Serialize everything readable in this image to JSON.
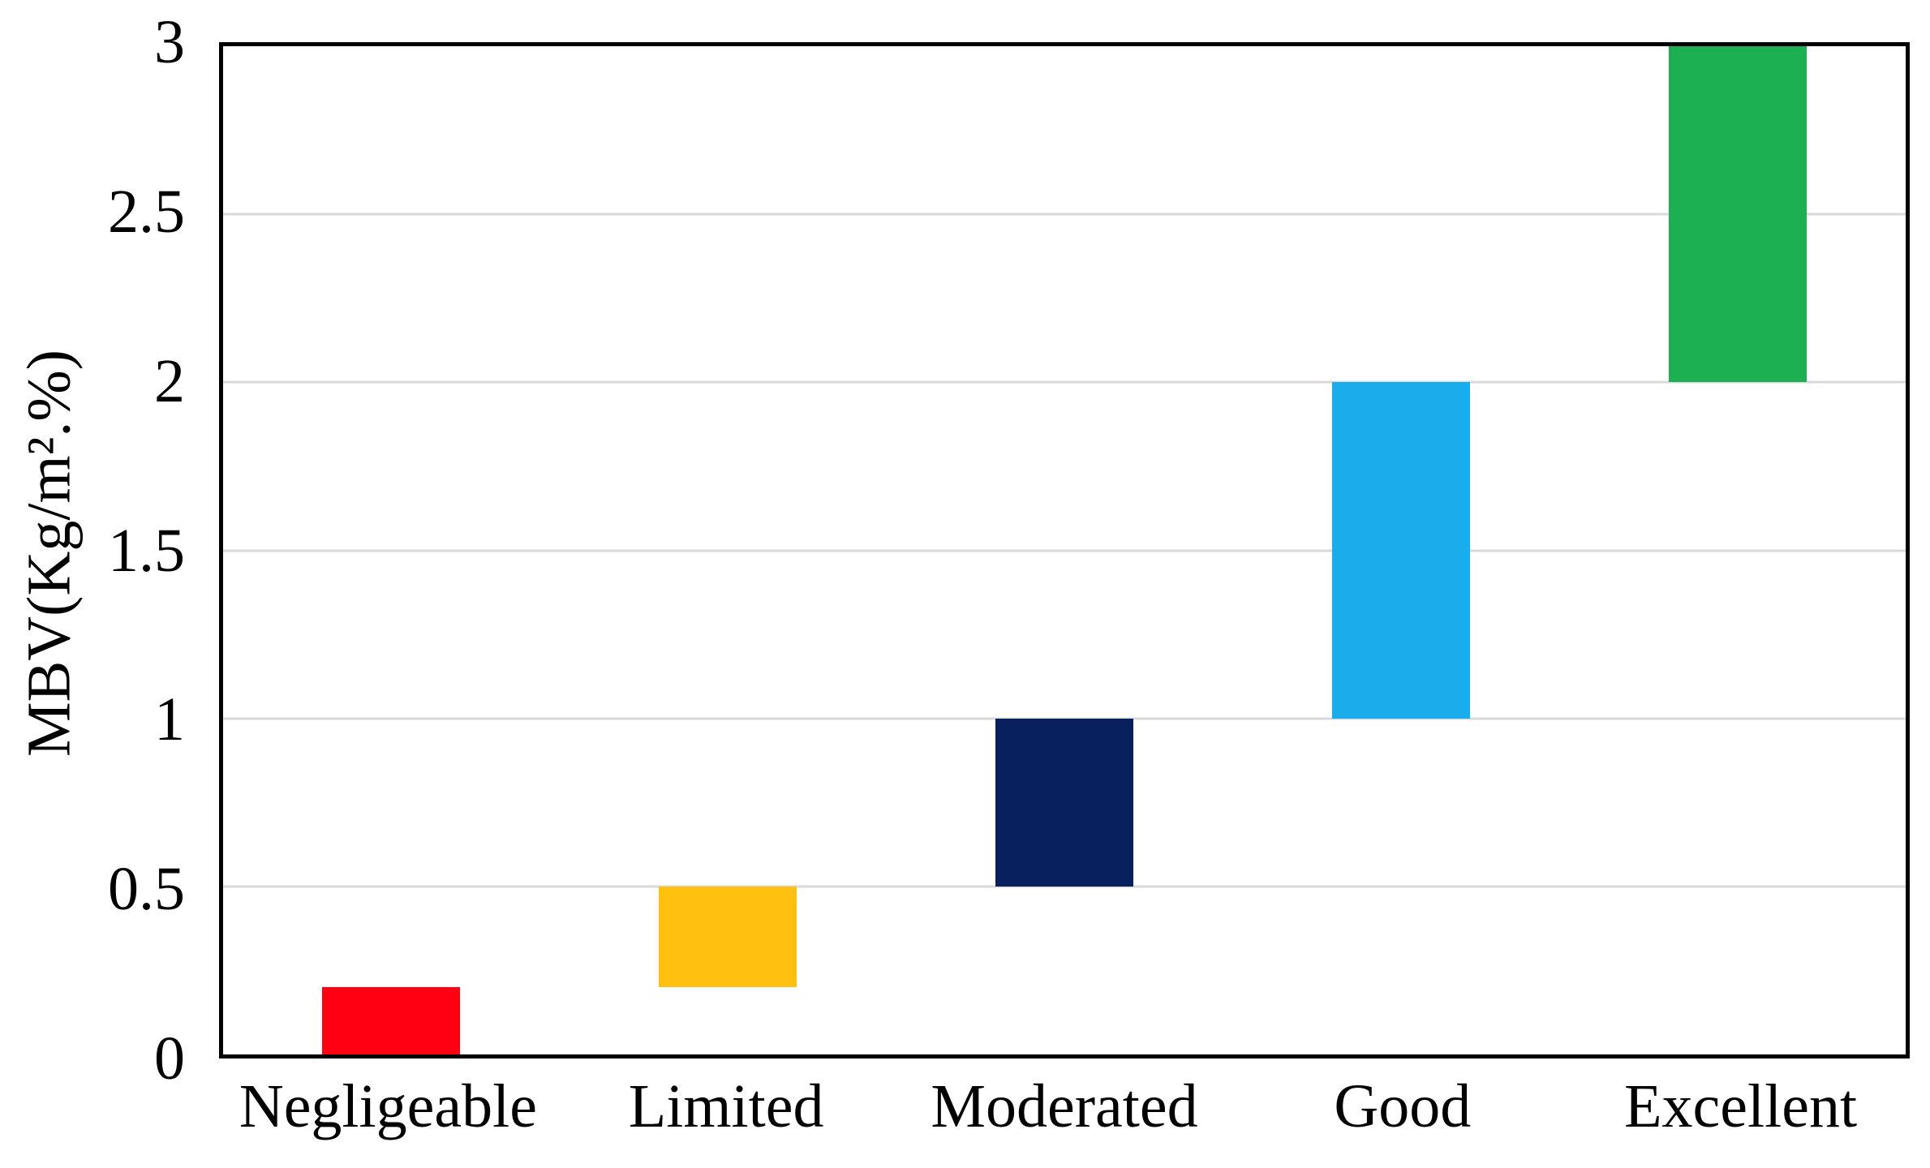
{
  "chart_data": {
    "type": "bar",
    "subtype": "floating-range-column",
    "title": "",
    "xlabel": "",
    "ylabel": "MBV(Kg/m².%)",
    "categories": [
      "Negligeable",
      "Limited",
      "Moderated",
      "Good",
      "Excellent"
    ],
    "ranges": [
      {
        "category": "Negligeable",
        "low": 0,
        "high": 0.2,
        "color": "#FF0013"
      },
      {
        "category": "Limited",
        "low": 0.2,
        "high": 0.5,
        "color": "#FFC010"
      },
      {
        "category": "Moderated",
        "low": 0.5,
        "high": 1,
        "color": "#08215E"
      },
      {
        "category": "Good",
        "low": 1,
        "high": 2,
        "color": "#1BACEC"
      },
      {
        "category": "Excellent",
        "low": 2,
        "high": 3,
        "color": "#1DB053"
      }
    ],
    "ylim": [
      0,
      3
    ],
    "yticks": [
      0,
      0.5,
      1,
      1.5,
      2,
      2.5,
      3
    ],
    "ytick_labels": [
      "0",
      "0.5",
      "1",
      "1.5",
      "2",
      "2.5",
      "3"
    ],
    "grid": true,
    "gridline_color": "#D9D9D9",
    "frame_color": "#000000",
    "plot_background": "#FFFFFF",
    "legend": false
  }
}
